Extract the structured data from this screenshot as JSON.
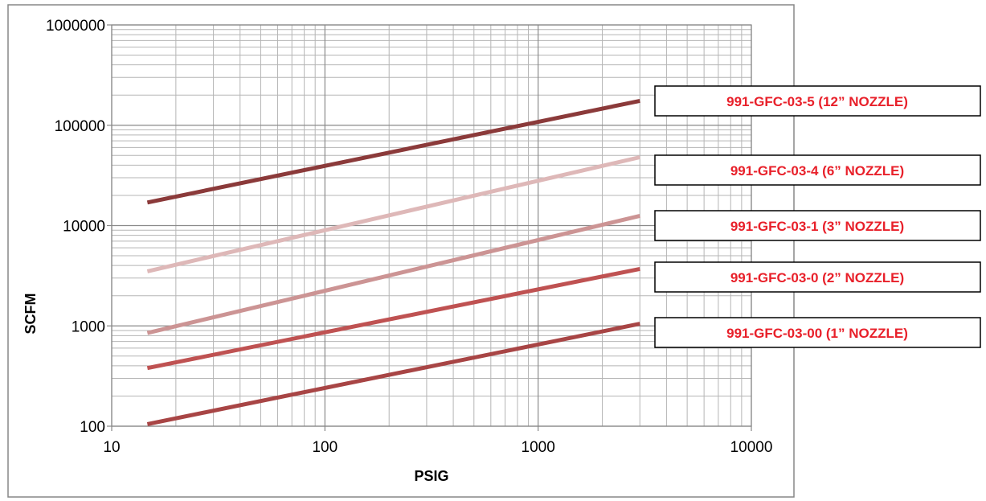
{
  "chart_data": {
    "type": "line",
    "title": "",
    "xlabel": "PSIG",
    "ylabel": "SCFM",
    "x_scale": "log",
    "y_scale": "log",
    "xlim": [
      10,
      10000
    ],
    "ylim": [
      100,
      1000000
    ],
    "x_ticks": [
      "10",
      "100",
      "1000",
      "10000"
    ],
    "y_ticks": [
      "100",
      "1000",
      "10000",
      "100000",
      "1000000"
    ],
    "grid": true,
    "legend_placement": "right",
    "series": [
      {
        "name": "991-GFC-03-5  (12” NOZZLE)",
        "color": "#8b3a3a",
        "x": [
          14.7,
          3000
        ],
        "y": [
          17000,
          175000
        ]
      },
      {
        "name": "991-GFC-03-4 (6” NOZZLE)",
        "color": "#deb8b8",
        "x": [
          14.7,
          3000
        ],
        "y": [
          3500,
          48000
        ]
      },
      {
        "name": "991-GFC-03-1 (3” NOZZLE)",
        "color": "#cc9494",
        "x": [
          14.7,
          3000
        ],
        "y": [
          850,
          12500
        ]
      },
      {
        "name": "991-GFC-03-0  (2” NOZZLE)",
        "color": "#bf5252",
        "x": [
          14.7,
          3000
        ],
        "y": [
          380,
          3700
        ]
      },
      {
        "name": "991-GFC-03-00  (1” NOZZLE)",
        "color": "#a84545",
        "x": [
          14.7,
          3000
        ],
        "y": [
          105,
          1050
        ]
      }
    ],
    "legend_text_color": "#e8202a"
  }
}
